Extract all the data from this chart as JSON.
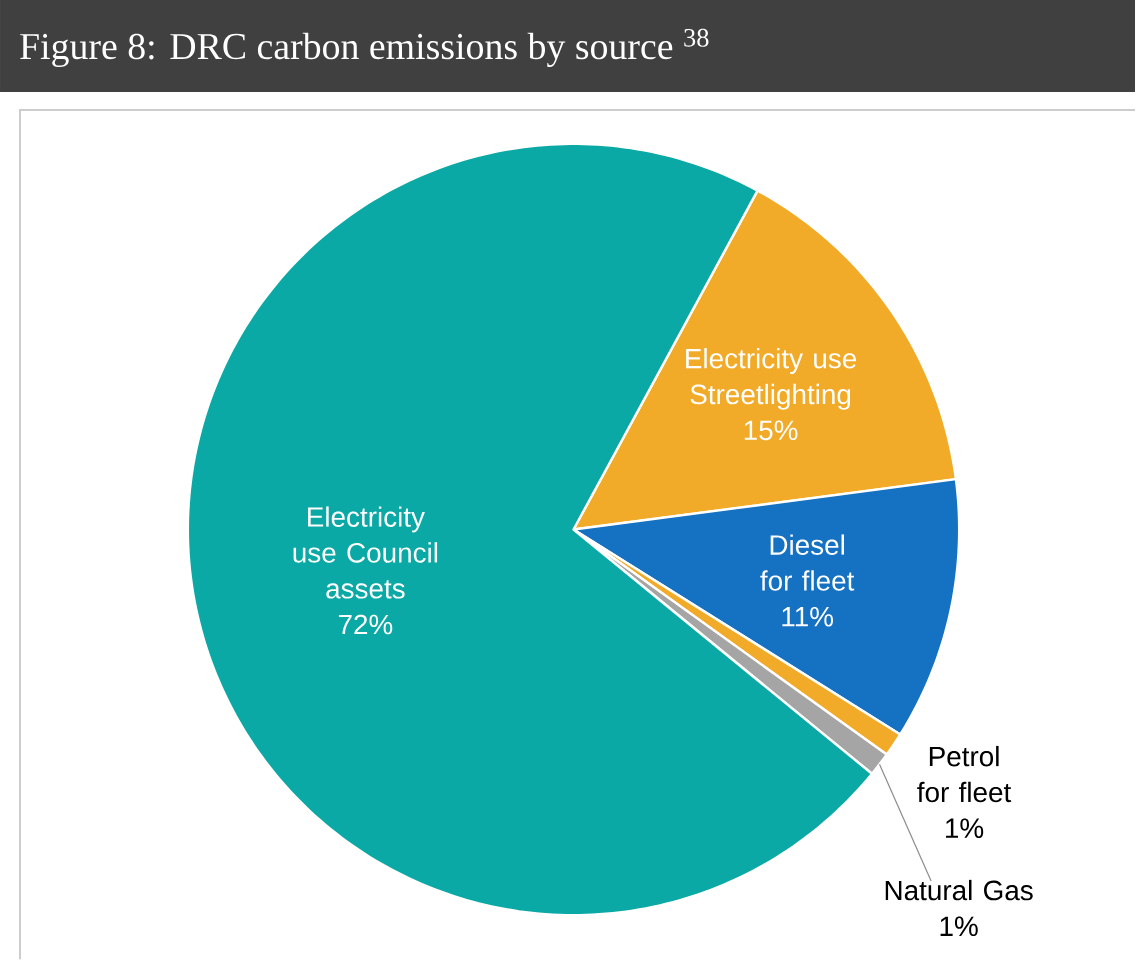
{
  "chart_data": {
    "type": "pie",
    "title": "Figure 8: DRC carbon emissions by source $^{38}$",
    "categories": [
      "Electricity use Streetlighting",
      "Diesel for fleet",
      "Petrol for fleet",
      "Natural Gas",
      "Electricity use Council assets"
    ],
    "values": [
      15,
      11,
      1,
      1,
      72
    ],
    "value_labels": [
      "15%",
      "11%",
      "1%",
      "1%",
      "72%"
    ],
    "colors": [
      "#f2ab29",
      "#1571c1",
      "#f2ab29",
      "#a5a5a5",
      "#0aa9a6"
    ]
  }
}
